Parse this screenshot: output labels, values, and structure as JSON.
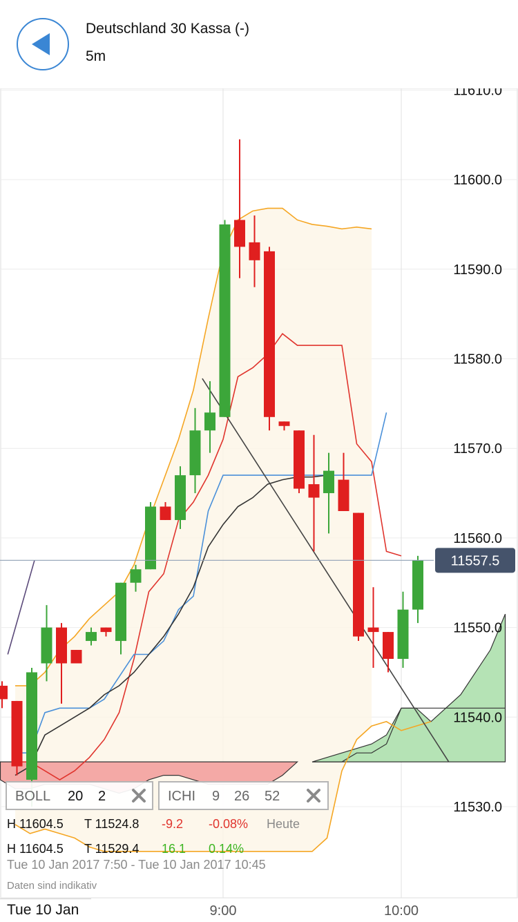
{
  "header": {
    "title": "Deutschland 30 Kassa (-)",
    "timeframe": "5m",
    "back_icon": "left-triangle-icon"
  },
  "colors": {
    "up": "#3ca63a",
    "down": "#e01f1f",
    "boll_band": "#f5a623",
    "boll_mid": "#e0342d",
    "tenkan": "#4a90d9",
    "kijun": "#333333",
    "cloud_bull": "#b5e3b5",
    "cloud_bear": "#f4a9a6",
    "price_badge": "#45536b"
  },
  "indicators": [
    {
      "name": "BOLL",
      "params": [
        "20",
        "2"
      ]
    },
    {
      "name": "ICHI",
      "params": [
        "9",
        "26",
        "52"
      ]
    }
  ],
  "info": {
    "row1": {
      "high": "H 11604.5",
      "low": "T 11524.8",
      "change": "-9.2",
      "pct": "-0.08%",
      "label": "Heute"
    },
    "row2": {
      "high": "H 11604.5",
      "low": "T 11529.4",
      "change": "16.1",
      "pct": "0.14%"
    },
    "range": "Tue 10 Jan 2017 7:50 - Tue 10 Jan 2017 10:45",
    "disclaimer": "Daten sind indikativ"
  },
  "date_label": "Tue 10 Jan",
  "chart_data": {
    "type": "candlestick",
    "ylim": [
      11525,
      11620
    ],
    "y_ticks": [
      "11530.0",
      "11540.0",
      "11550.0",
      "11560.0",
      "11570.0",
      "11580.0",
      "11590.0",
      "11600.0",
      "11610.0"
    ],
    "x_ticks": [
      {
        "label": "9:00",
        "slot": 14
      },
      {
        "label": "10:00",
        "slot": 26
      }
    ],
    "slots": 28,
    "current_price": "11557.5",
    "candles": [
      {
        "o": 11543.5,
        "h": 11544.0,
        "l": 11541.0,
        "c": 11542.0
      },
      {
        "o": 11541.8,
        "h": 11541.8,
        "l": 11533.5,
        "c": 11534.5
      },
      {
        "o": 11533.0,
        "h": 11545.5,
        "l": 11530.0,
        "c": 11545.0
      },
      {
        "o": 11546.0,
        "h": 11552.5,
        "l": 11544.0,
        "c": 11550.0
      },
      {
        "o": 11550.0,
        "h": 11550.5,
        "l": 11541.5,
        "c": 11546.0
      },
      {
        "o": 11547.5,
        "h": 11547.5,
        "l": 11546.0,
        "c": 11546.0
      },
      {
        "o": 11548.5,
        "h": 11550.0,
        "l": 11548.0,
        "c": 11549.5
      },
      {
        "o": 11550.0,
        "h": 11550.0,
        "l": 11549.0,
        "c": 11549.5
      },
      {
        "o": 11548.5,
        "h": 11555.0,
        "l": 11547.0,
        "c": 11555.0
      },
      {
        "o": 11555.0,
        "h": 11557.0,
        "l": 11554.0,
        "c": 11556.5
      },
      {
        "o": 11556.5,
        "h": 11564.0,
        "l": 11556.5,
        "c": 11563.5
      },
      {
        "o": 11563.5,
        "h": 11564.0,
        "l": 11562.0,
        "c": 11562.0
      },
      {
        "o": 11562.0,
        "h": 11568.0,
        "l": 11561.0,
        "c": 11567.0
      },
      {
        "o": 11567.0,
        "h": 11574.5,
        "l": 11565.0,
        "c": 11572.0
      },
      {
        "o": 11572.0,
        "h": 11577.5,
        "l": 11569.5,
        "c": 11574.0
      },
      {
        "o": 11573.5,
        "h": 11595.5,
        "l": 11573.5,
        "c": 11595.0
      },
      {
        "o": 11595.5,
        "h": 11604.5,
        "l": 11589.0,
        "c": 11592.5
      },
      {
        "o": 11593.0,
        "h": 11596.0,
        "l": 11588.0,
        "c": 11591.0
      },
      {
        "o": 11592.0,
        "h": 11592.5,
        "l": 11572.0,
        "c": 11573.5
      },
      {
        "o": 11573.0,
        "h": 11573.0,
        "l": 11572.0,
        "c": 11572.5
      },
      {
        "o": 11572.0,
        "h": 11572.0,
        "l": 11565.0,
        "c": 11565.5
      },
      {
        "o": 11566.0,
        "h": 11571.5,
        "l": 11558.5,
        "c": 11564.5
      },
      {
        "o": 11565.0,
        "h": 11569.5,
        "l": 11560.5,
        "c": 11567.5
      },
      {
        "o": 11566.5,
        "h": 11569.5,
        "l": 11563.0,
        "c": 11563.0
      },
      {
        "o": 11562.8,
        "h": 11562.8,
        "l": 11548.5,
        "c": 11549.0
      },
      {
        "o": 11550.0,
        "h": 11554.5,
        "l": 11545.5,
        "c": 11549.5
      },
      {
        "o": 11549.5,
        "h": 11549.5,
        "l": 11545.0,
        "c": 11546.5
      },
      {
        "o": 11546.5,
        "h": 11554.0,
        "l": 11545.5,
        "c": 11552.0
      },
      {
        "o": 11552.0,
        "h": 11558.0,
        "l": 11550.5,
        "c": 11557.5
      }
    ],
    "boll_upper": [
      11543.5,
      11543.5,
      11545.0,
      11547.5,
      11549.0,
      11551.0,
      11552.5,
      11554.0,
      11557.0,
      11562.0,
      11566.5,
      11571.0,
      11576.5,
      11584.5,
      11592.0,
      11595.5,
      11596.5,
      11596.8,
      11596.8,
      11595.5,
      11595.0,
      11594.8,
      11594.5,
      11594.7,
      11594.5
    ],
    "boll_mid": [
      11535.0,
      11535.0,
      11534.0,
      11533.0,
      11534.0,
      11535.5,
      11537.5,
      11540.5,
      11546.5,
      11554.0,
      11556.0,
      11562.0,
      11564.0,
      11567.0,
      11571.0,
      11578.0,
      11579.0,
      11580.5,
      11582.8,
      11581.5,
      11581.5,
      11581.5,
      11581.5,
      11570.5,
      11568.5,
      11558.5,
      11558.0
    ],
    "boll_lower": [
      11528.0,
      11527.0,
      11527.5,
      11527.0,
      11526.5,
      11525.5,
      11525.0,
      11525.0,
      11525.0,
      11525.0,
      11525.0,
      11525.0,
      11525.0,
      11525.0,
      11525.0,
      11525.0,
      11525.0,
      11525.0,
      11525.0,
      11525.0,
      11525.0,
      11526.5,
      11534.0,
      11537.5,
      11539.0,
      11539.5,
      11538.5,
      11539.0,
      11539.5
    ],
    "tenkan": [
      11536.0,
      11536.0,
      11540.5,
      11541.0,
      11541.0,
      11541.0,
      11542.0,
      11544.5,
      11547.0,
      11547.0,
      11548.5,
      11552.0,
      11553.5,
      11563.0,
      11567.0,
      11567.0,
      11567.0,
      11567.0,
      11567.0,
      11567.0,
      11567.0,
      11567.0,
      11567.0,
      11567.0,
      11567.0,
      11574.0
    ],
    "kijun": [
      11533.5,
      11534.5,
      11538.0,
      11539.0,
      11540.0,
      11541.0,
      11542.5,
      11543.5,
      11545.0,
      11547.0,
      11549.0,
      11551.5,
      11554.5,
      11559.0,
      11561.5,
      11563.5,
      11564.5,
      11566.0,
      11566.5,
      11566.8,
      11566.8,
      11567.0
    ],
    "trend_line": {
      "from": {
        "slot": 12.6,
        "value": 11577.8
      },
      "to": {
        "slot": 29.2,
        "value": 11535.0
      }
    },
    "purple_line": {
      "from": {
        "slot": -0.5,
        "value": 11547.0
      },
      "to": {
        "slot": 1.3,
        "value": 11557.5
      }
    },
    "cloud_bear": {
      "top": [
        11535.0,
        11535.0,
        11535.0,
        11535.0,
        11535.0,
        11535.0,
        11535.0,
        11535.0,
        11535.0,
        11535.0,
        11535.0,
        11535.0,
        11535.0,
        11535.0,
        11535.0,
        11535.0,
        11535.0,
        11535.0,
        11535.0,
        11535.0,
        11535.0
      ],
      "bottom": [
        11533.0,
        11532.0,
        11532.0,
        11532.5,
        11532.5,
        11532.5,
        11532.5,
        11532.0,
        11531.5,
        11532.0,
        11533.0,
        11533.5,
        11533.5,
        11533.0,
        11532.5,
        11532.5,
        11532.5,
        11532.5,
        11532.5,
        11533.5,
        11535.0
      ]
    },
    "cloud_bull": {
      "top": [
        11535.0,
        11535.0,
        11535.0,
        11536.0,
        11536.0,
        11537.0,
        11541.0,
        11541.0,
        11541.0,
        11541.0,
        11541.0,
        11541.0,
        11541.0,
        11541.0
      ],
      "bottom": [
        11535.0,
        11535.0,
        11535.0,
        11535.0,
        11535.0,
        11535.0,
        11535.0,
        11535.0,
        11535.0,
        11535.0,
        11535.0,
        11535.0,
        11535.0,
        11535.0
      ],
      "upper_edge": [
        11535.0,
        11535.5,
        11536.0,
        11536.5,
        11537.0,
        11538.0,
        11541.0,
        11541.0,
        11539.5,
        11541.0,
        11542.5,
        11545.0,
        11547.5,
        11551.5
      ]
    }
  }
}
